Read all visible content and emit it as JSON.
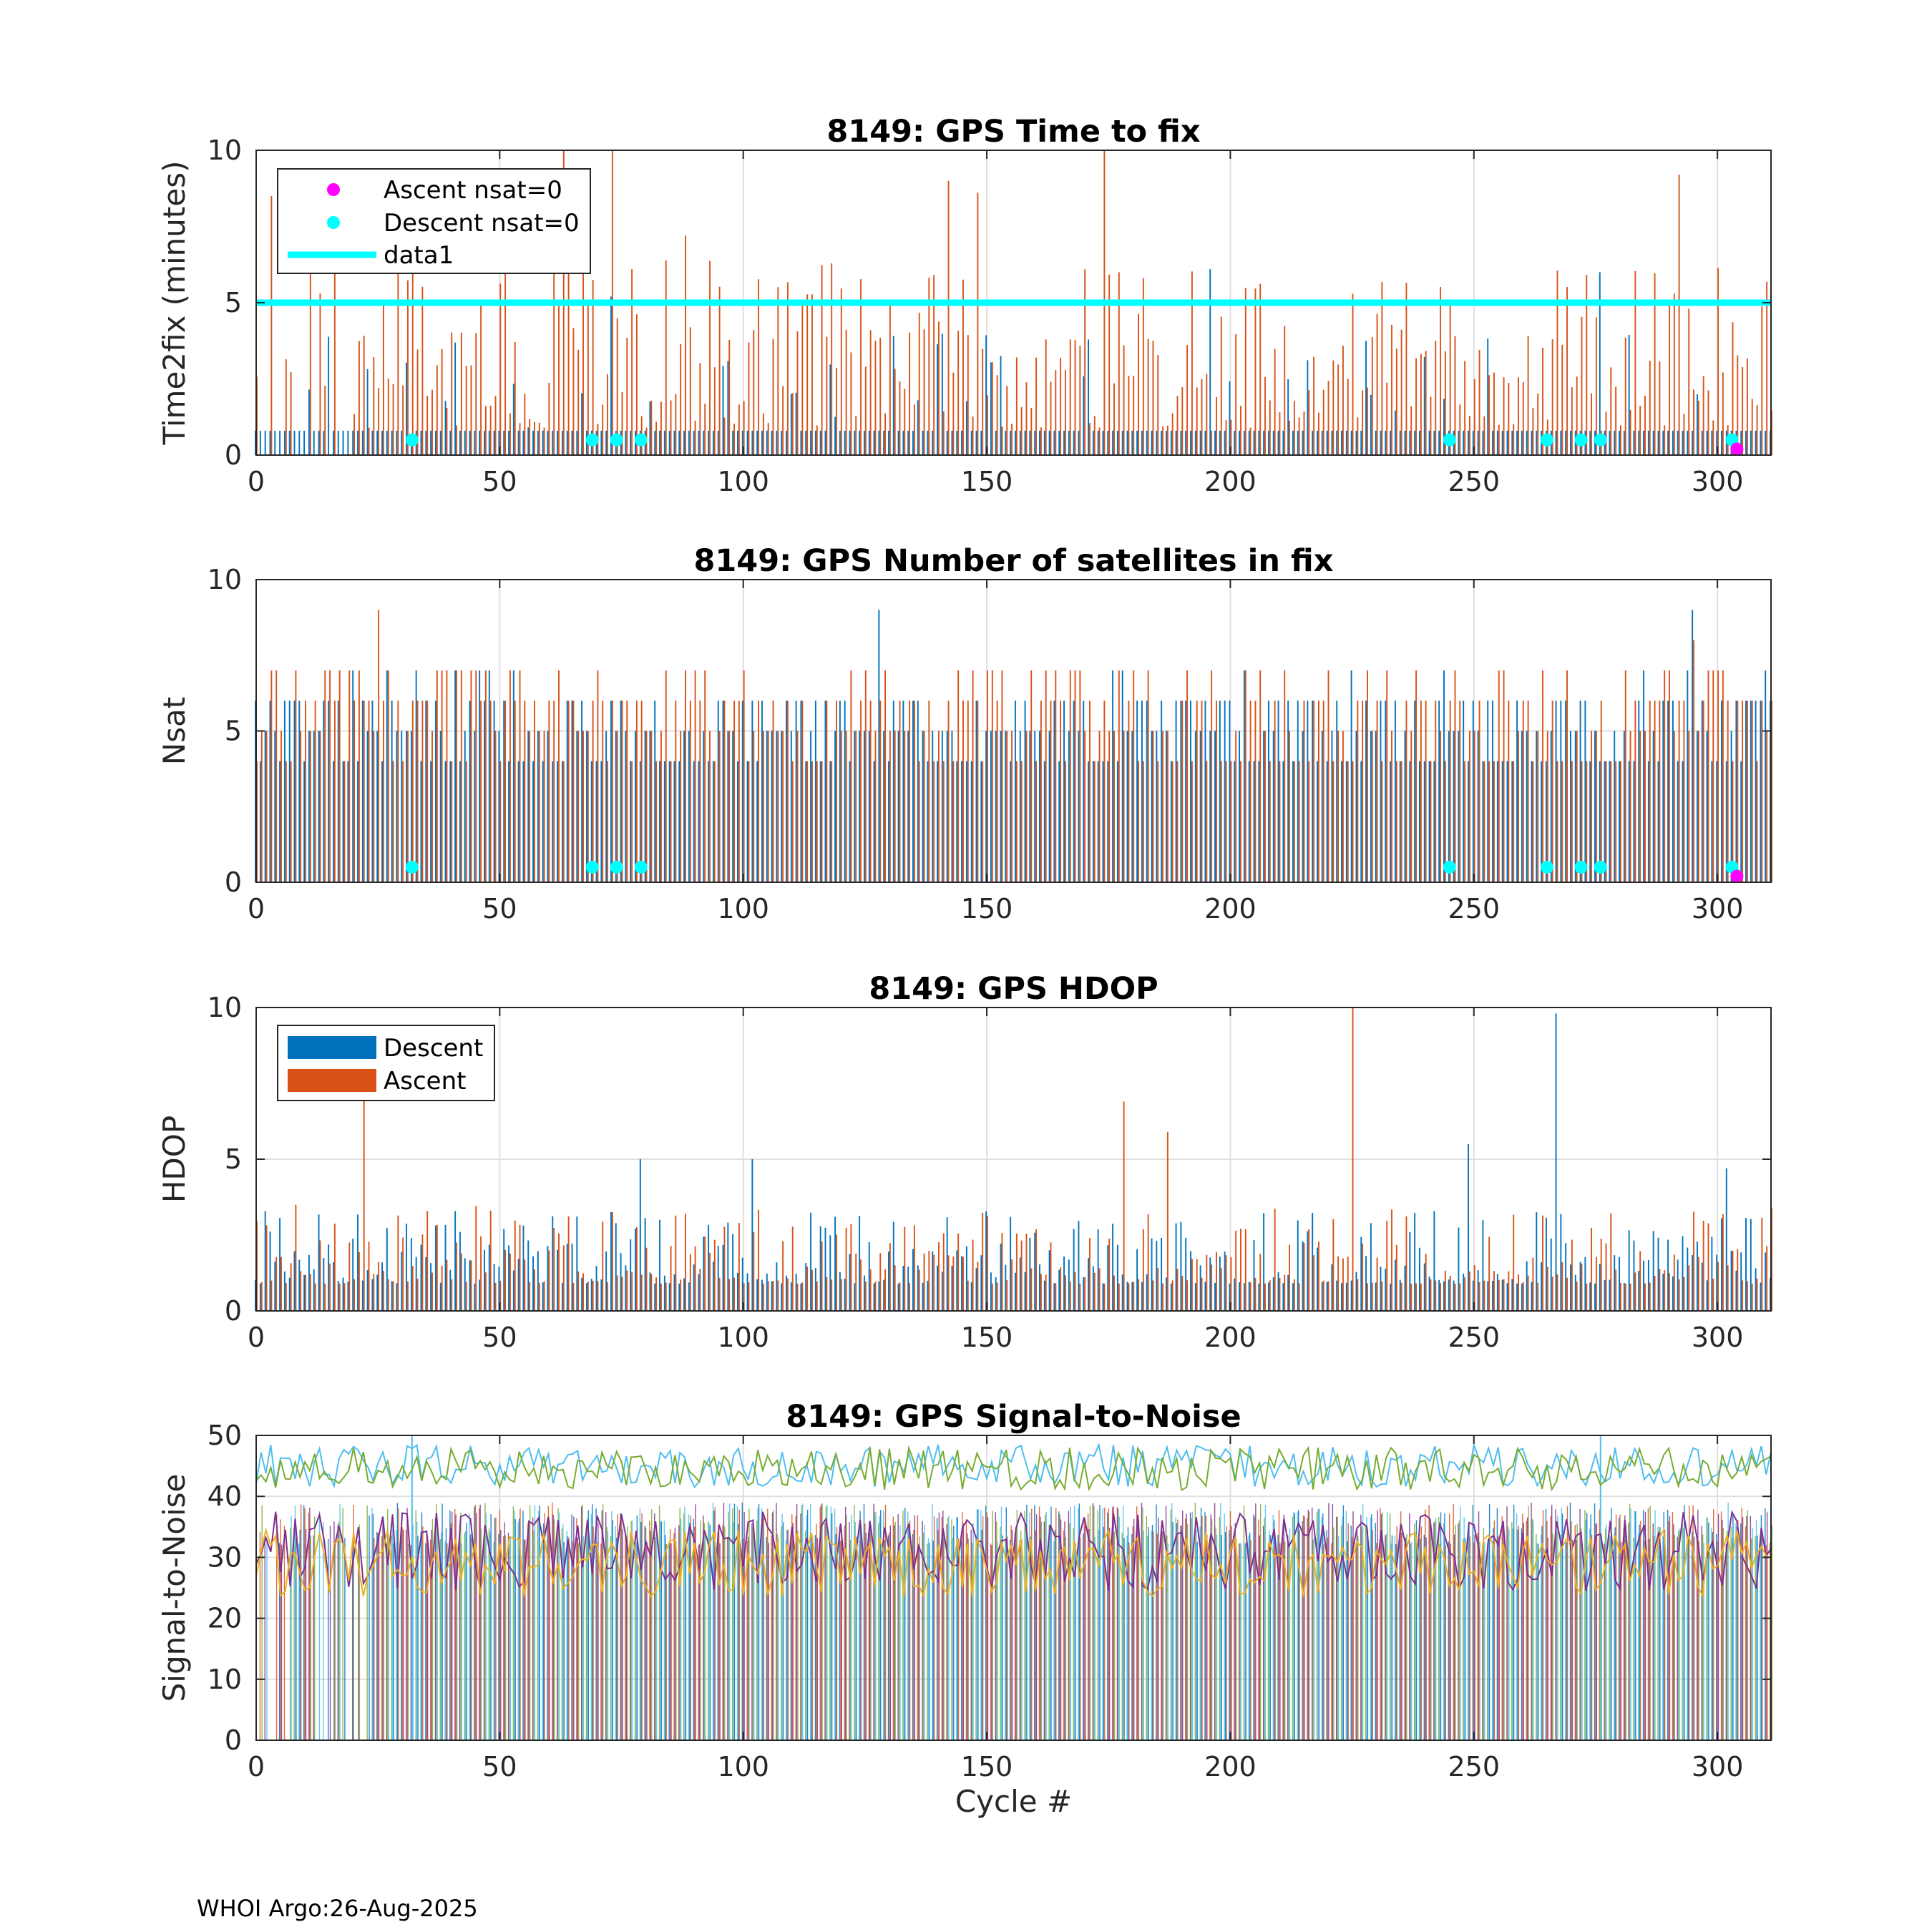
{
  "footer": "WHOI Argo:26-Aug-2025",
  "colors": {
    "descent": "#0072BD",
    "ascent": "#D95319",
    "ascent_nsat0": "#FF00FF",
    "descent_nsat0": "#00FFFF",
    "data1": "#00FFFF",
    "snr_lines": [
      "#4DBEEE",
      "#77AC30",
      "#7E2F8E",
      "#EDB120",
      "#0072BD"
    ]
  },
  "chart_data": [
    {
      "type": "bar",
      "title": "8149: GPS Time to fix",
      "xlabel": "",
      "ylabel": "Time2fix (minutes)",
      "xlim": [
        0,
        311
      ],
      "ylim": [
        0,
        10
      ],
      "xticks": [
        0,
        50,
        100,
        150,
        200,
        250,
        300
      ],
      "yticks": [
        0,
        5,
        10
      ],
      "grid": true,
      "legend": {
        "location": "top-left",
        "entries": [
          "Ascent nsat=0",
          "Descent nsat=0",
          "data1"
        ]
      },
      "reference_line": {
        "name": "data1",
        "y": 5
      },
      "series": [
        {
          "name": "Descent",
          "values_note": "per-cycle bars, mostly 0.5-1.0 min with occasional peaks up to 6.1"
        },
        {
          "name": "Ascent",
          "values_note": "per-cycle bars, 1-10 min, peaks 9.0-10.0 near cycles 63, 73, 142, 148, 174"
        }
      ],
      "markers": [
        {
          "name": "Descent nsat=0",
          "y": 0.5,
          "x": [
            32,
            69,
            74,
            79,
            245,
            265,
            272,
            276,
            303
          ]
        },
        {
          "name": "Ascent nsat=0",
          "y": 0.2,
          "x": [
            304
          ]
        }
      ],
      "peaks": [
        {
          "cycle": 3,
          "descent": 0.8,
          "ascent": 8.5
        },
        {
          "cycle": 13,
          "descent": 0.8,
          "ascent": 5.3
        },
        {
          "cycle": 32,
          "descent": 0.6,
          "ascent": 6.2
        },
        {
          "cycle": 63,
          "descent": 0.8,
          "ascent": 10.0
        },
        {
          "cycle": 73,
          "descent": 5.2,
          "ascent": 10.0
        },
        {
          "cycle": 77,
          "descent": 0.8,
          "ascent": 6.1
        },
        {
          "cycle": 88,
          "descent": 0.8,
          "ascent": 7.2
        },
        {
          "cycle": 142,
          "descent": 0.8,
          "ascent": 9.0
        },
        {
          "cycle": 148,
          "descent": 0.8,
          "ascent": 8.6
        },
        {
          "cycle": 174,
          "descent": 0.8,
          "ascent": 10.0
        },
        {
          "cycle": 196,
          "descent": 6.1,
          "ascent": 0.8
        },
        {
          "cycle": 276,
          "descent": 6.0,
          "ascent": 0.8
        },
        {
          "cycle": 292,
          "descent": 0.8,
          "ascent": 9.2
        }
      ]
    },
    {
      "type": "bar",
      "title": "8149: GPS Number of satellites in fix",
      "xlabel": "",
      "ylabel": "Nsat",
      "xlim": [
        0,
        311
      ],
      "ylim": [
        0,
        10
      ],
      "xticks": [
        0,
        50,
        100,
        150,
        200,
        250,
        300
      ],
      "yticks": [
        0,
        5,
        10
      ],
      "grid": true,
      "series": [
        {
          "name": "Descent",
          "values_note": "per-cycle bars, typically 4-8 satellites"
        },
        {
          "name": "Ascent",
          "values_note": "per-cycle bars, typically 4-9 satellites"
        }
      ],
      "markers": [
        {
          "name": "Descent nsat=0",
          "y": 0.5,
          "x": [
            32,
            69,
            74,
            79,
            245,
            265,
            272,
            276,
            303
          ]
        },
        {
          "name": "Ascent nsat=0",
          "y": 0.2,
          "x": [
            304
          ]
        }
      ],
      "peaks": [
        {
          "cycle": 25,
          "descent": 5,
          "ascent": 9
        },
        {
          "cycle": 128,
          "descent": 9,
          "ascent": 6
        },
        {
          "cycle": 295,
          "descent": 9,
          "ascent": 8
        }
      ]
    },
    {
      "type": "bar",
      "title": "8149: GPS HDOP",
      "xlabel": "",
      "ylabel": "HDOP",
      "xlim": [
        0,
        311
      ],
      "ylim": [
        0,
        10
      ],
      "xticks": [
        0,
        50,
        100,
        150,
        200,
        250,
        300
      ],
      "yticks": [
        0,
        5,
        10
      ],
      "grid": true,
      "legend": {
        "location": "top-left",
        "entries": [
          "Descent",
          "Ascent"
        ]
      },
      "series": [
        {
          "name": "Descent",
          "values_note": "per-cycle bars, typically 0.8-2.5"
        },
        {
          "name": "Ascent",
          "values_note": "per-cycle bars, typically 0.8-3.0"
        }
      ],
      "peaks": [
        {
          "cycle": 22,
          "descent": 1.0,
          "ascent": 7.0
        },
        {
          "cycle": 79,
          "descent": 5.0,
          "ascent": 1.2
        },
        {
          "cycle": 102,
          "descent": 5.0,
          "ascent": 2.6
        },
        {
          "cycle": 178,
          "descent": 1.2,
          "ascent": 6.9
        },
        {
          "cycle": 187,
          "descent": 1.1,
          "ascent": 5.9
        },
        {
          "cycle": 225,
          "descent": 1.0,
          "ascent": 10.0
        },
        {
          "cycle": 249,
          "descent": 5.5,
          "ascent": 1.3
        },
        {
          "cycle": 267,
          "descent": 9.8,
          "ascent": 1.2
        },
        {
          "cycle": 302,
          "descent": 4.7,
          "ascent": 1.5
        }
      ]
    },
    {
      "type": "line",
      "title": "8149: GPS Signal-to-Noise",
      "xlabel": "Cycle #",
      "ylabel": "Signal-to-Noise",
      "xlim": [
        0,
        311
      ],
      "ylim": [
        0,
        50
      ],
      "xticks": [
        0,
        50,
        100,
        150,
        200,
        250,
        300
      ],
      "yticks": [
        0,
        10,
        20,
        30,
        40,
        50
      ],
      "grid": true,
      "series": [
        {
          "name": "max (light blue)",
          "values_note": "fluctuates 40-50"
        },
        {
          "name": "max ascent (green)",
          "values_note": "fluctuates 40-50"
        },
        {
          "name": "mean (purple)",
          "values_note": "fluctuates 20-42"
        },
        {
          "name": "mean ascent (yellow)",
          "values_note": "fluctuates 20-38"
        }
      ],
      "bars_note": "dense per-cycle bars of satellite SNR values, 30-40, behind lines"
    }
  ]
}
